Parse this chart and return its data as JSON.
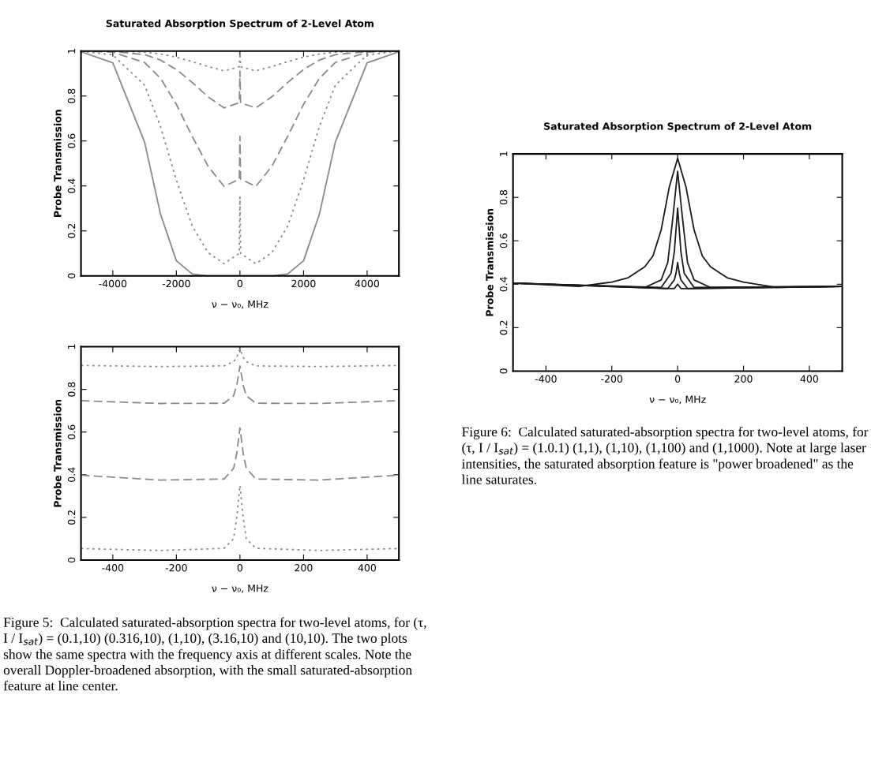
{
  "chart_data": [
    {
      "type": "line",
      "title": "Saturated Absorption Spectrum of 2-Level Atom",
      "xlabel": "ν − ν₀, MHz",
      "ylabel": "Probe Transmission",
      "xlim": [
        -5000,
        5000
      ],
      "xticks": [
        -4000,
        -2000,
        0,
        2000,
        4000
      ],
      "ylim": [
        0,
        1
      ],
      "yticks": [
        0,
        0.2,
        0.4,
        0.6,
        0.8,
        1
      ],
      "x": [
        -5000,
        -4000,
        -3000,
        -2500,
        -2000,
        -1500,
        -1000,
        -500,
        -20,
        0,
        20,
        500,
        1000,
        1500,
        2000,
        2500,
        3000,
        4000,
        5000
      ],
      "series": [
        {
          "color": "#8a8a8a",
          "line_style": "dotted",
          "values": [
            1.0,
            1.0,
            0.995,
            0.987,
            0.973,
            0.953,
            0.931,
            0.912,
            0.93,
            0.99,
            0.93,
            0.912,
            0.931,
            0.953,
            0.973,
            0.987,
            0.995,
            1.0,
            1.0
          ]
        },
        {
          "color": "#8a8a8a",
          "line_style": "dashed",
          "values": [
            1.0,
            0.998,
            0.984,
            0.96,
            0.918,
            0.86,
            0.796,
            0.747,
            0.77,
            0.91,
            0.77,
            0.747,
            0.796,
            0.86,
            0.918,
            0.96,
            0.984,
            0.998,
            1.0
          ]
        },
        {
          "color": "#8a8a8a",
          "line_style": "dashed",
          "values": [
            1.0,
            0.995,
            0.949,
            0.879,
            0.763,
            0.62,
            0.487,
            0.398,
            0.43,
            0.62,
            0.43,
            0.398,
            0.487,
            0.62,
            0.763,
            0.879,
            0.949,
            0.995,
            1.0
          ]
        },
        {
          "color": "#8a8a8a",
          "line_style": "dotted",
          "values": [
            0.999,
            0.983,
            0.848,
            0.665,
            0.426,
            0.221,
            0.103,
            0.054,
            0.1,
            0.35,
            0.1,
            0.054,
            0.103,
            0.221,
            0.426,
            0.665,
            0.848,
            0.983,
            0.999
          ]
        },
        {
          "color": "#8a8a8a",
          "line_style": "solid",
          "values": [
            0.997,
            0.948,
            0.595,
            0.275,
            0.067,
            0.008,
            0.0,
            0.0,
            0.0,
            0.0,
            0.0,
            0.0,
            0.0,
            0.008,
            0.067,
            0.275,
            0.595,
            0.948,
            0.997
          ]
        }
      ]
    },
    {
      "type": "line",
      "xlabel": "ν − ν₀, MHz",
      "ylabel": "Probe Transmission",
      "xlim": [
        -500,
        500
      ],
      "xticks": [
        -400,
        -200,
        0,
        200,
        400
      ],
      "ylim": [
        0,
        1
      ],
      "yticks": [
        0,
        0.2,
        0.4,
        0.6,
        0.8,
        1
      ],
      "x": [
        -500,
        -250,
        -50,
        -20,
        -10,
        0,
        10,
        20,
        50,
        250,
        500
      ],
      "series": [
        {
          "color": "#8a8a8a",
          "line_style": "dotted",
          "values": [
            0.912,
            0.907,
            0.91,
            0.93,
            0.95,
            0.99,
            0.95,
            0.93,
            0.91,
            0.907,
            0.912
          ]
        },
        {
          "color": "#8a8a8a",
          "line_style": "dashed",
          "values": [
            0.747,
            0.734,
            0.735,
            0.77,
            0.82,
            0.91,
            0.82,
            0.77,
            0.735,
            0.734,
            0.747
          ]
        },
        {
          "color": "#8a8a8a",
          "line_style": "dashed",
          "values": [
            0.398,
            0.375,
            0.38,
            0.43,
            0.5,
            0.62,
            0.5,
            0.43,
            0.38,
            0.375,
            0.398
          ]
        },
        {
          "color": "#8a8a8a",
          "line_style": "dotted",
          "values": [
            0.054,
            0.045,
            0.055,
            0.1,
            0.2,
            0.35,
            0.2,
            0.1,
            0.055,
            0.045,
            0.054
          ]
        }
      ],
      "annotations": [
        "Figure 5:  Calculated saturated-absorption spectra for two-level atoms, for (τ, I / I$_{sat}$) = (0.1,10) (0.316,10), (1,10), (3.16,10) and (10,10). The two plots show the same spectra with the frequency axis at different scales. Note the overall Doppler-broadened absorption, with the small saturated-absorption feature at line center."
      ]
    },
    {
      "type": "line",
      "title": "Saturated Absorption Spectrum of 2-Level Atom",
      "xlabel": "ν − ν₀, MHz",
      "ylabel": "Probe Transmission",
      "xlim": [
        -500,
        500
      ],
      "xticks": [
        -400,
        -200,
        0,
        200,
        400
      ],
      "ylim": [
        0,
        1
      ],
      "yticks": [
        0,
        0.2,
        0.4,
        0.6,
        0.8,
        1
      ],
      "series": [
        {
          "color": "#1a1a1a",
          "line_style": "solid",
          "x": [
            -500,
            -300,
            -200,
            -150,
            -100,
            -75,
            -50,
            -25,
            0,
            25,
            50,
            75,
            100,
            150,
            200,
            300,
            500
          ],
          "values": [
            0.405,
            0.39,
            0.41,
            0.43,
            0.48,
            0.53,
            0.65,
            0.85,
            0.98,
            0.85,
            0.65,
            0.53,
            0.48,
            0.43,
            0.41,
            0.385,
            0.39
          ]
        },
        {
          "color": "#1a1a1a",
          "line_style": "solid",
          "x": [
            -500,
            -100,
            -50,
            -30,
            -15,
            0,
            15,
            30,
            50,
            100,
            500
          ],
          "values": [
            0.405,
            0.385,
            0.42,
            0.5,
            0.7,
            0.92,
            0.7,
            0.5,
            0.42,
            0.385,
            0.39
          ]
        },
        {
          "color": "#1a1a1a",
          "line_style": "solid",
          "x": [
            -500,
            -50,
            -20,
            -10,
            -5,
            0,
            5,
            10,
            20,
            50,
            500
          ],
          "values": [
            0.405,
            0.385,
            0.45,
            0.55,
            0.65,
            0.75,
            0.65,
            0.55,
            0.45,
            0.385,
            0.39
          ]
        },
        {
          "color": "#1a1a1a",
          "line_style": "solid",
          "x": [
            -500,
            -30,
            -10,
            -5,
            0,
            5,
            10,
            30,
            500
          ],
          "values": [
            0.405,
            0.38,
            0.42,
            0.45,
            0.5,
            0.45,
            0.42,
            0.38,
            0.39
          ]
        },
        {
          "color": "#1a1a1a",
          "line_style": "solid",
          "x": [
            -500,
            -10,
            0,
            10,
            500
          ],
          "values": [
            0.405,
            0.38,
            0.4,
            0.38,
            0.39
          ]
        }
      ],
      "annotations": [
        "Figure 6:  Calculated saturated-absorption spectra for two-level atoms, for (τ, I / I$_{sat}$) = (1.0.1) (1,1), (1,10), (1,100) and (1,1000). Note at large laser intensities, the saturated absorption feature is \"power broadened\" as the line saturates."
      ]
    }
  ]
}
